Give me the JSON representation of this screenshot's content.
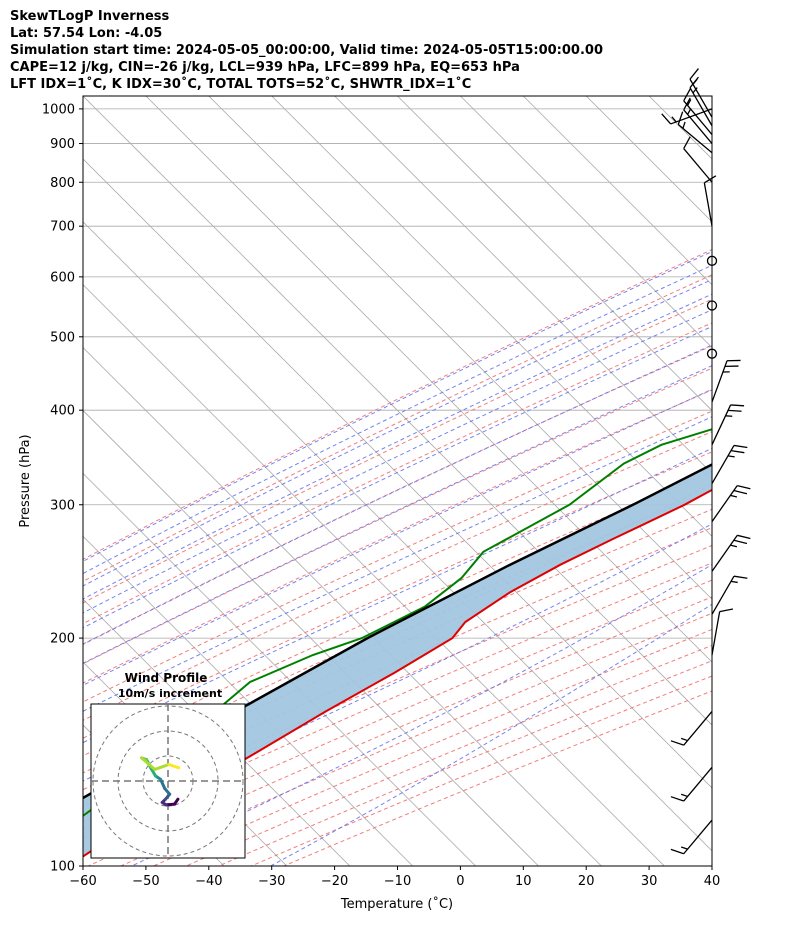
{
  "header": {
    "line1": "SkewTLogP Inverness",
    "line2": "Lat: 57.54   Lon: -4.05",
    "line3": "Simulation start time: 2024-05-05_00:00:00, Valid time: 2024-05-05T15:00:00.00",
    "line4": "CAPE=12 j/kg, CIN=-26 j/kg, LCL=939 hPa, LFC=899 hPa, EQ=653 hPa",
    "line5": "LFT IDX=1˚C, K IDX=30˚C, TOTAL TOTS=52˚C, SHWTR_IDX=1˚C"
  },
  "chart_data": {
    "type": "line",
    "subtype": "skew-t log-p",
    "xlabel": "Temperature (˚C)",
    "ylabel": "Pressure (hPa)",
    "xlim": [
      -60,
      40
    ],
    "ylim": [
      1040,
      100
    ],
    "y_scale": "log",
    "grid": true,
    "x_ticks": [
      -60,
      -50,
      -40,
      -30,
      -20,
      -10,
      0,
      10,
      20,
      30,
      40
    ],
    "y_ticks": [
      100,
      200,
      300,
      400,
      500,
      600,
      700,
      800,
      900,
      1000
    ],
    "colors": {
      "temperature": "#e00000",
      "dewpoint": "#008000",
      "parcel": "#000000",
      "cape_fill": "#a3c6e0",
      "isotherm": "#aaaaaa",
      "dry_adiabat": "#f07070",
      "moist_adiabat": "#6677ee",
      "mixing_ratio": "#9944cc",
      "wind_barb": "#000000"
    },
    "series": [
      {
        "role": "temperature",
        "points": [
          [
            1000,
            16.5
          ],
          [
            980,
            14.2
          ],
          [
            950,
            14.0
          ],
          [
            900,
            13.0
          ],
          [
            850,
            11.5
          ],
          [
            800,
            9.5
          ],
          [
            700,
            6.2
          ],
          [
            600,
            2.7
          ],
          [
            550,
            0.4
          ],
          [
            500,
            -2.0
          ],
          [
            450,
            -4.0
          ],
          [
            400,
            -8.0
          ],
          [
            350,
            -15.0
          ],
          [
            300,
            -21.8
          ],
          [
            270,
            -27.8
          ],
          [
            250,
            -32.0
          ],
          [
            230,
            -35.6
          ],
          [
            210,
            -38.0
          ],
          [
            200,
            -37.5
          ],
          [
            180,
            -41.2
          ],
          [
            160,
            -46.0
          ],
          [
            140,
            -50.8
          ],
          [
            120,
            -56.5
          ],
          [
            110,
            -59.7
          ],
          [
            100,
            -62.3
          ]
        ]
      },
      {
        "role": "dewpoint",
        "points": [
          [
            1000,
            12.3
          ],
          [
            980,
            12.0
          ],
          [
            950,
            11.8
          ],
          [
            900,
            11.2
          ],
          [
            850,
            10.0
          ],
          [
            800,
            8.6
          ],
          [
            700,
            3.2
          ],
          [
            600,
            -4.0
          ],
          [
            550,
            -8.5
          ],
          [
            500,
            -13.0
          ],
          [
            450,
            -17.3
          ],
          [
            420,
            -20.0
          ],
          [
            400,
            -22.6
          ],
          [
            360,
            -35.0
          ],
          [
            340,
            -38.0
          ],
          [
            300,
            -40.1
          ],
          [
            260,
            -46.3
          ],
          [
            240,
            -45.6
          ],
          [
            220,
            -46.9
          ],
          [
            200,
            -51.9
          ],
          [
            190,
            -57.0
          ],
          [
            175,
            -62.7
          ],
          [
            140,
            -64.8
          ],
          [
            120,
            -67.4
          ],
          [
            100,
            -71.0
          ]
        ]
      },
      {
        "role": "parcel",
        "points": [
          [
            1000,
            16.7
          ],
          [
            960,
            13.3
          ],
          [
            939,
            13.0
          ],
          [
            900,
            11.9
          ],
          [
            850,
            10.1
          ],
          [
            800,
            8.5
          ],
          [
            700,
            4.4
          ],
          [
            600,
            0.0
          ],
          [
            500,
            -6.0
          ],
          [
            400,
            -15.5
          ],
          [
            300,
            -30.0
          ],
          [
            250,
            -40.0
          ],
          [
            200,
            -51.0
          ],
          [
            150,
            -63.0
          ],
          [
            100,
            -79.0
          ]
        ]
      }
    ],
    "wind_barbs": [
      {
        "p": 1000,
        "barbs": 1.5,
        "dir": 250
      },
      {
        "p": 975,
        "barbs": 1.5,
        "dir": 330
      },
      {
        "p": 950,
        "barbs": 1.5,
        "dir": 330
      },
      {
        "p": 925,
        "barbs": 1.5,
        "dir": 320
      },
      {
        "p": 900,
        "barbs": 1.5,
        "dir": 320
      },
      {
        "p": 875,
        "barbs": 1.5,
        "dir": 310
      },
      {
        "p": 800,
        "barbs": 1,
        "dir": 320
      },
      {
        "p": 700,
        "barbs": 1,
        "dir": 350
      },
      {
        "p": 630,
        "calm": true
      },
      {
        "p": 550,
        "calm": true
      },
      {
        "p": 475,
        "calm": true
      },
      {
        "p": 410,
        "barbs": 2.5,
        "dir": 20
      },
      {
        "p": 360,
        "barbs": 2.5,
        "dir": 25
      },
      {
        "p": 320,
        "barbs": 2.5,
        "dir": 30
      },
      {
        "p": 285,
        "barbs": 2.5,
        "dir": 35
      },
      {
        "p": 245,
        "barbs": 2.5,
        "dir": 35
      },
      {
        "p": 215,
        "barbs": 1.5,
        "dir": 30
      },
      {
        "p": 190,
        "barbs": 1,
        "dir": 10
      },
      {
        "p": 160,
        "barbs": 1.5,
        "dir": 220
      },
      {
        "p": 135,
        "barbs": 1.5,
        "dir": 220
      },
      {
        "p": 115,
        "barbs": 1.5,
        "dir": 220
      }
    ],
    "hodograph": {
      "title": "Wind Profile",
      "subtitle": "10m/s increment",
      "points": [
        [
          1.2,
          -2.2
        ],
        [
          0.8,
          -2.8
        ],
        [
          -0.2,
          -2.9
        ],
        [
          -0.7,
          -2.6
        ],
        [
          -0.3,
          -2.2
        ],
        [
          0.2,
          -1.6
        ],
        [
          -0.4,
          -0.9
        ],
        [
          -0.9,
          0.2
        ],
        [
          -1.5,
          0.6
        ],
        [
          -2.1,
          1.6
        ],
        [
          -2.6,
          2.6
        ],
        [
          -3.2,
          2.8
        ],
        [
          -1.6,
          1.4
        ],
        [
          0.1,
          2.0
        ],
        [
          1.3,
          1.6
        ]
      ]
    }
  }
}
